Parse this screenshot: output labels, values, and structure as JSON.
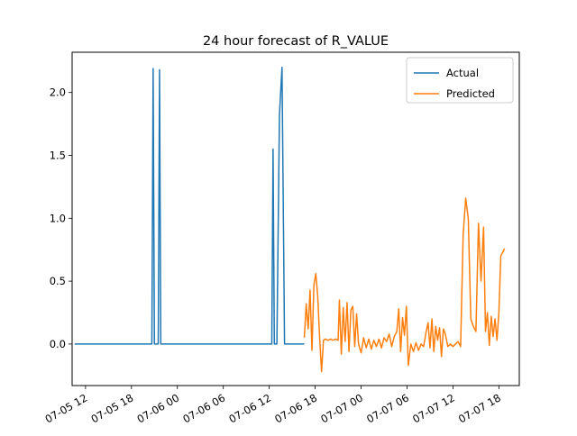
{
  "chart_data": {
    "type": "line",
    "title": "24 hour forecast of R_VALUE",
    "xlabel": "",
    "ylabel": "",
    "x_axis_kind": "datetime",
    "xlim": [
      "2024-07-05 10:15",
      "2024-07-07 20:40"
    ],
    "ylim": [
      -0.33,
      2.32
    ],
    "x_tick_labels": [
      "07-05 12",
      "07-05 18",
      "07-06 00",
      "07-06 06",
      "07-06 12",
      "07-06 18",
      "07-07 00",
      "07-07 06",
      "07-07 12",
      "07-07 18"
    ],
    "x_tick_values": [
      "2024-07-05 12:00",
      "2024-07-05 18:00",
      "2024-07-06 00:00",
      "2024-07-06 06:00",
      "2024-07-06 12:00",
      "2024-07-06 18:00",
      "2024-07-07 00:00",
      "2024-07-07 06:00",
      "2024-07-07 12:00",
      "2024-07-07 18:00"
    ],
    "y_ticks": [
      0.0,
      0.5,
      1.0,
      1.5,
      2.0
    ],
    "y_tick_labels": [
      "0.0",
      "0.5",
      "1.0",
      "1.5",
      "2.0"
    ],
    "grid": false,
    "legend_position": "top-right",
    "series": [
      {
        "name": "Actual",
        "color": "#1f77b4",
        "points": [
          [
            "2024-07-05 10:35",
            0.0
          ],
          [
            "2024-07-05 20:40",
            0.0
          ],
          [
            "2024-07-05 20:50",
            2.19
          ],
          [
            "2024-07-05 21:00",
            0.0
          ],
          [
            "2024-07-05 21:30",
            0.0
          ],
          [
            "2024-07-05 21:40",
            2.18
          ],
          [
            "2024-07-05 21:50",
            0.0
          ],
          [
            "2024-07-06 12:20",
            0.0
          ],
          [
            "2024-07-06 12:30",
            1.55
          ],
          [
            "2024-07-06 12:40",
            0.0
          ],
          [
            "2024-07-06 13:00",
            0.0
          ],
          [
            "2024-07-06 13:20",
            1.82
          ],
          [
            "2024-07-06 13:40",
            2.2
          ],
          [
            "2024-07-06 14:00",
            0.0
          ],
          [
            "2024-07-06 16:35",
            0.0
          ]
        ]
      },
      {
        "name": "Predicted",
        "color": "#ff7f0e",
        "points": [
          [
            "2024-07-06 16:35",
            0.05
          ],
          [
            "2024-07-06 16:50",
            0.32
          ],
          [
            "2024-07-06 17:05",
            0.12
          ],
          [
            "2024-07-06 17:20",
            0.43
          ],
          [
            "2024-07-06 17:35",
            -0.05
          ],
          [
            "2024-07-06 17:50",
            0.47
          ],
          [
            "2024-07-06 18:05",
            0.56
          ],
          [
            "2024-07-06 18:20",
            0.38
          ],
          [
            "2024-07-06 18:35",
            0.05
          ],
          [
            "2024-07-06 18:50",
            -0.22
          ],
          [
            "2024-07-06 19:05",
            0.03
          ],
          [
            "2024-07-06 19:20",
            0.04
          ],
          [
            "2024-07-06 19:40",
            0.03
          ],
          [
            "2024-07-06 20:00",
            0.04
          ],
          [
            "2024-07-06 20:20",
            0.03
          ],
          [
            "2024-07-06 20:40",
            0.04
          ],
          [
            "2024-07-06 21:00",
            0.03
          ],
          [
            "2024-07-06 21:10",
            0.35
          ],
          [
            "2024-07-06 21:25",
            -0.08
          ],
          [
            "2024-07-06 21:40",
            0.29
          ],
          [
            "2024-07-06 21:55",
            0.02
          ],
          [
            "2024-07-06 22:10",
            0.33
          ],
          [
            "2024-07-06 22:25",
            -0.06
          ],
          [
            "2024-07-06 22:40",
            0.27
          ],
          [
            "2024-07-06 22:55",
            0.3
          ],
          [
            "2024-07-06 23:10",
            -0.02
          ],
          [
            "2024-07-06 23:25",
            0.24
          ],
          [
            "2024-07-06 23:40",
            0.0
          ],
          [
            "2024-07-07 00:00",
            -0.07
          ],
          [
            "2024-07-07 00:20",
            0.05
          ],
          [
            "2024-07-07 00:40",
            -0.03
          ],
          [
            "2024-07-07 01:00",
            0.04
          ],
          [
            "2024-07-07 01:20",
            -0.04
          ],
          [
            "2024-07-07 01:40",
            0.03
          ],
          [
            "2024-07-07 02:00",
            -0.02
          ],
          [
            "2024-07-07 02:20",
            0.04
          ],
          [
            "2024-07-07 02:40",
            -0.03
          ],
          [
            "2024-07-07 03:00",
            0.05
          ],
          [
            "2024-07-07 03:20",
            0.02
          ],
          [
            "2024-07-07 03:40",
            0.08
          ],
          [
            "2024-07-07 04:00",
            -0.02
          ],
          [
            "2024-07-07 04:20",
            0.06
          ],
          [
            "2024-07-07 04:40",
            0.1
          ],
          [
            "2024-07-07 04:55",
            0.28
          ],
          [
            "2024-07-07 05:10",
            -0.06
          ],
          [
            "2024-07-07 05:25",
            0.21
          ],
          [
            "2024-07-07 05:40",
            0.07
          ],
          [
            "2024-07-07 05:55",
            0.3
          ],
          [
            "2024-07-07 06:10",
            -0.17
          ],
          [
            "2024-07-07 06:30",
            0.0
          ],
          [
            "2024-07-07 06:50",
            -0.06
          ],
          [
            "2024-07-07 07:10",
            0.01
          ],
          [
            "2024-07-07 07:30",
            -0.05
          ],
          [
            "2024-07-07 07:50",
            0.0
          ],
          [
            "2024-07-07 08:10",
            -0.02
          ],
          [
            "2024-07-07 08:30",
            0.1
          ],
          [
            "2024-07-07 08:45",
            0.17
          ],
          [
            "2024-07-07 09:00",
            -0.03
          ],
          [
            "2024-07-07 09:15",
            0.2
          ],
          [
            "2024-07-07 09:30",
            -0.06
          ],
          [
            "2024-07-07 09:45",
            0.14
          ],
          [
            "2024-07-07 10:00",
            0.03
          ],
          [
            "2024-07-07 10:15",
            0.13
          ],
          [
            "2024-07-07 10:30",
            -0.1
          ],
          [
            "2024-07-07 10:45",
            0.12
          ],
          [
            "2024-07-07 11:00",
            0.08
          ],
          [
            "2024-07-07 11:20",
            -0.02
          ],
          [
            "2024-07-07 11:40",
            0.0
          ],
          [
            "2024-07-07 12:00",
            -0.02
          ],
          [
            "2024-07-07 12:20",
            0.0
          ],
          [
            "2024-07-07 12:40",
            0.02
          ],
          [
            "2024-07-07 13:00",
            -0.02
          ],
          [
            "2024-07-07 13:20",
            0.87
          ],
          [
            "2024-07-07 13:40",
            1.16
          ],
          [
            "2024-07-07 14:00",
            1.0
          ],
          [
            "2024-07-07 14:20",
            0.2
          ],
          [
            "2024-07-07 14:40",
            0.14
          ],
          [
            "2024-07-07 15:00",
            0.1
          ],
          [
            "2024-07-07 15:20",
            0.96
          ],
          [
            "2024-07-07 15:40",
            0.5
          ],
          [
            "2024-07-07 16:00",
            0.93
          ],
          [
            "2024-07-07 16:15",
            0.1
          ],
          [
            "2024-07-07 16:30",
            0.25
          ],
          [
            "2024-07-07 16:45",
            -0.01
          ],
          [
            "2024-07-07 17:00",
            0.22
          ],
          [
            "2024-07-07 17:15",
            0.06
          ],
          [
            "2024-07-07 17:30",
            0.2
          ],
          [
            "2024-07-07 17:45",
            0.03
          ],
          [
            "2024-07-07 18:00",
            0.25
          ],
          [
            "2024-07-07 18:15",
            0.7
          ],
          [
            "2024-07-07 18:30",
            0.73
          ],
          [
            "2024-07-07 18:45",
            0.76
          ]
        ]
      }
    ]
  }
}
